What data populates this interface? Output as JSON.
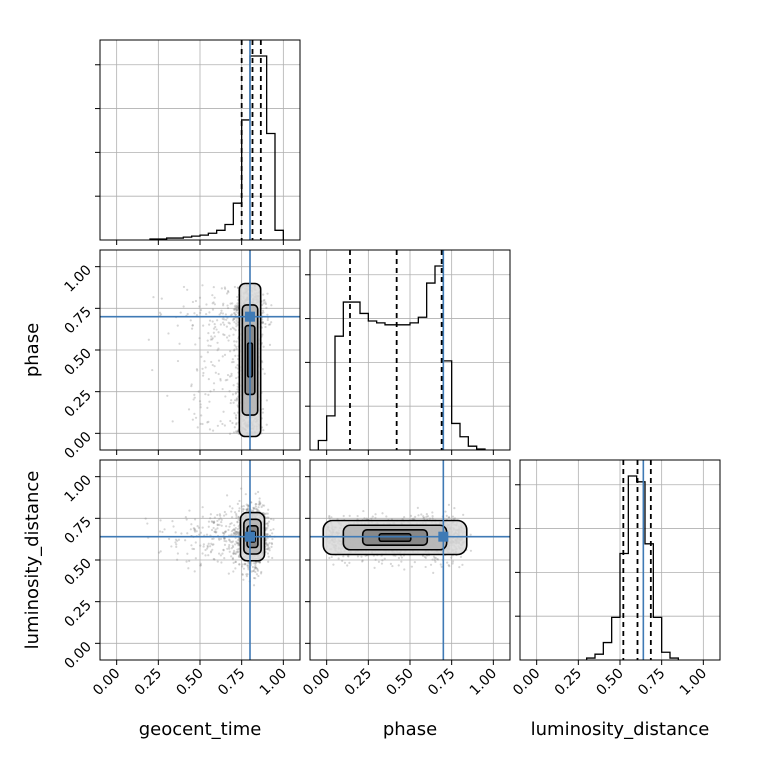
{
  "chart_data": {
    "type": "corner",
    "parameters": [
      "geocent_time",
      "phase",
      "luminosity_distance"
    ],
    "axis_range": [
      -0.1,
      1.1
    ],
    "ticks": [
      0.0,
      0.25,
      0.5,
      0.75,
      1.0
    ],
    "tick_labels": [
      "0.00",
      "0.25",
      "0.50",
      "0.75",
      "1.00"
    ],
    "grid": true,
    "colors": {
      "truth": "#3f7ab5",
      "hist": "#000000",
      "samples": "#8a8a8a"
    },
    "truths": {
      "geocent_time": 0.8,
      "phase": 0.7,
      "luminosity_distance": 0.64
    },
    "quantiles": {
      "geocent_time": [
        0.75,
        0.815,
        0.865
      ],
      "phase": [
        0.14,
        0.42,
        0.69
      ],
      "luminosity_distance": [
        0.52,
        0.605,
        0.685
      ]
    },
    "marginals": {
      "geocent_time": {
        "bin_edges": [
          0.2,
          0.25,
          0.3,
          0.35,
          0.4,
          0.45,
          0.5,
          0.55,
          0.6,
          0.65,
          0.7,
          0.75,
          0.8,
          0.85,
          0.9,
          0.95,
          1.0
        ],
        "counts": [
          0.005,
          0.005,
          0.01,
          0.01,
          0.015,
          0.02,
          0.025,
          0.035,
          0.05,
          0.08,
          0.19,
          0.62,
          0.95,
          0.95,
          0.55,
          0.05
        ]
      },
      "phase": {
        "bin_edges": [
          -0.05,
          0.0,
          0.05,
          0.1,
          0.15,
          0.2,
          0.25,
          0.3,
          0.35,
          0.4,
          0.45,
          0.5,
          0.55,
          0.6,
          0.65,
          0.7,
          0.75,
          0.8,
          0.85,
          0.9,
          0.95
        ],
        "counts": [
          0.05,
          0.18,
          0.6,
          0.78,
          0.78,
          0.72,
          0.68,
          0.67,
          0.66,
          0.66,
          0.66,
          0.67,
          0.7,
          0.88,
          0.97,
          0.47,
          0.14,
          0.07,
          0.02,
          0.005
        ]
      },
      "luminosity_distance": {
        "bin_edges": [
          0.3,
          0.35,
          0.4,
          0.45,
          0.5,
          0.55,
          0.6,
          0.65,
          0.7,
          0.75,
          0.8,
          0.85
        ],
        "counts": [
          0.01,
          0.03,
          0.09,
          0.22,
          0.55,
          0.95,
          0.92,
          0.6,
          0.22,
          0.04,
          0.01
        ]
      }
    },
    "joint": {
      "geocent_time_vs_phase": {
        "x_param": "geocent_time",
        "y_param": "phase",
        "mode": [
          0.8,
          0.71
        ],
        "x_spread": 0.04,
        "y_range": [
          -0.01,
          0.89
        ]
      },
      "geocent_time_vs_luminosity_distance": {
        "x_param": "geocent_time",
        "y_param": "luminosity_distance",
        "mode": [
          0.815,
          0.64
        ],
        "x_spread": 0.045,
        "y_spread": 0.085
      },
      "phase_vs_luminosity_distance": {
        "x_param": "phase",
        "y_param": "luminosity_distance",
        "mode": [
          0.7,
          0.635
        ],
        "x_range": [
          0.0,
          0.82
        ],
        "y_spread": 0.06
      }
    }
  }
}
